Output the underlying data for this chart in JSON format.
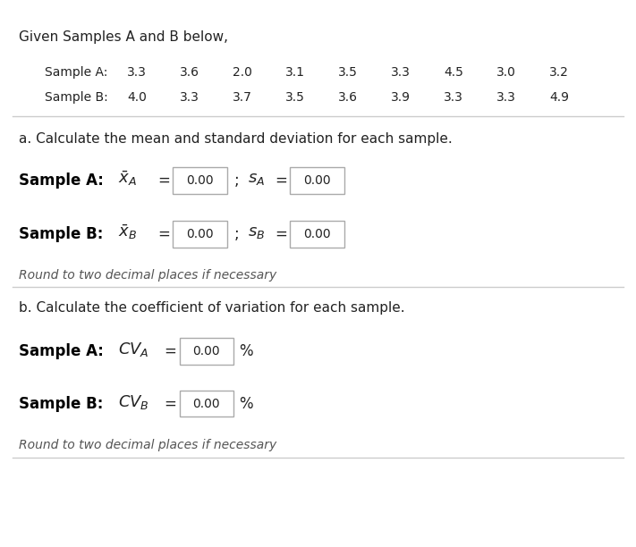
{
  "title": "Given Samples A and B below,",
  "sample_a_label": "Sample A:",
  "sample_b_label": "Sample B:",
  "sample_a_values": [
    "3.3",
    "3.6",
    "2.0",
    "3.1",
    "3.5",
    "3.3",
    "4.5",
    "3.0",
    "3.2"
  ],
  "sample_b_values": [
    "4.0",
    "3.3",
    "3.7",
    "3.5",
    "3.6",
    "3.9",
    "3.3",
    "3.3",
    "4.9"
  ],
  "part_a_heading": "a. Calculate the mean and standard deviation for each sample.",
  "part_b_heading": "b. Calculate the coefficient of variation for each sample.",
  "input_value": "0.00",
  "round_note": "Round to two decimal places if necessary",
  "bg_color": "#ffffff",
  "text_color": "#222222",
  "box_color": "#ffffff",
  "box_border": "#aaaaaa",
  "divider_color": "#cccccc",
  "italic_color": "#555555",
  "bold_label_color": "#000000"
}
